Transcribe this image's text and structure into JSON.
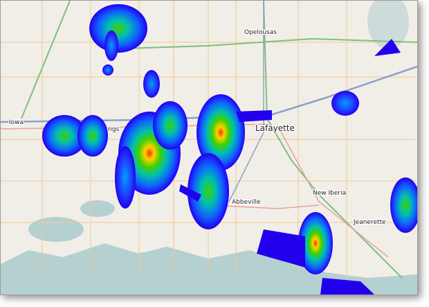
{
  "map": {
    "places": {
      "opelousas": "Opelousas",
      "iowa": "Iowa",
      "jennings": "ngs",
      "lafayette": "Lafayette",
      "new_iberia": "New Iberia",
      "abbeville": "Abbeville",
      "jeanerette": "Jeanerette"
    },
    "overlay": "heatmap",
    "heat_colors": [
      "#2200ff",
      "#0090ff",
      "#00d090",
      "#40d000",
      "#ffd000",
      "#ff3000"
    ],
    "water_color": "#b5d0d0",
    "land_color": "#f1eee8"
  }
}
